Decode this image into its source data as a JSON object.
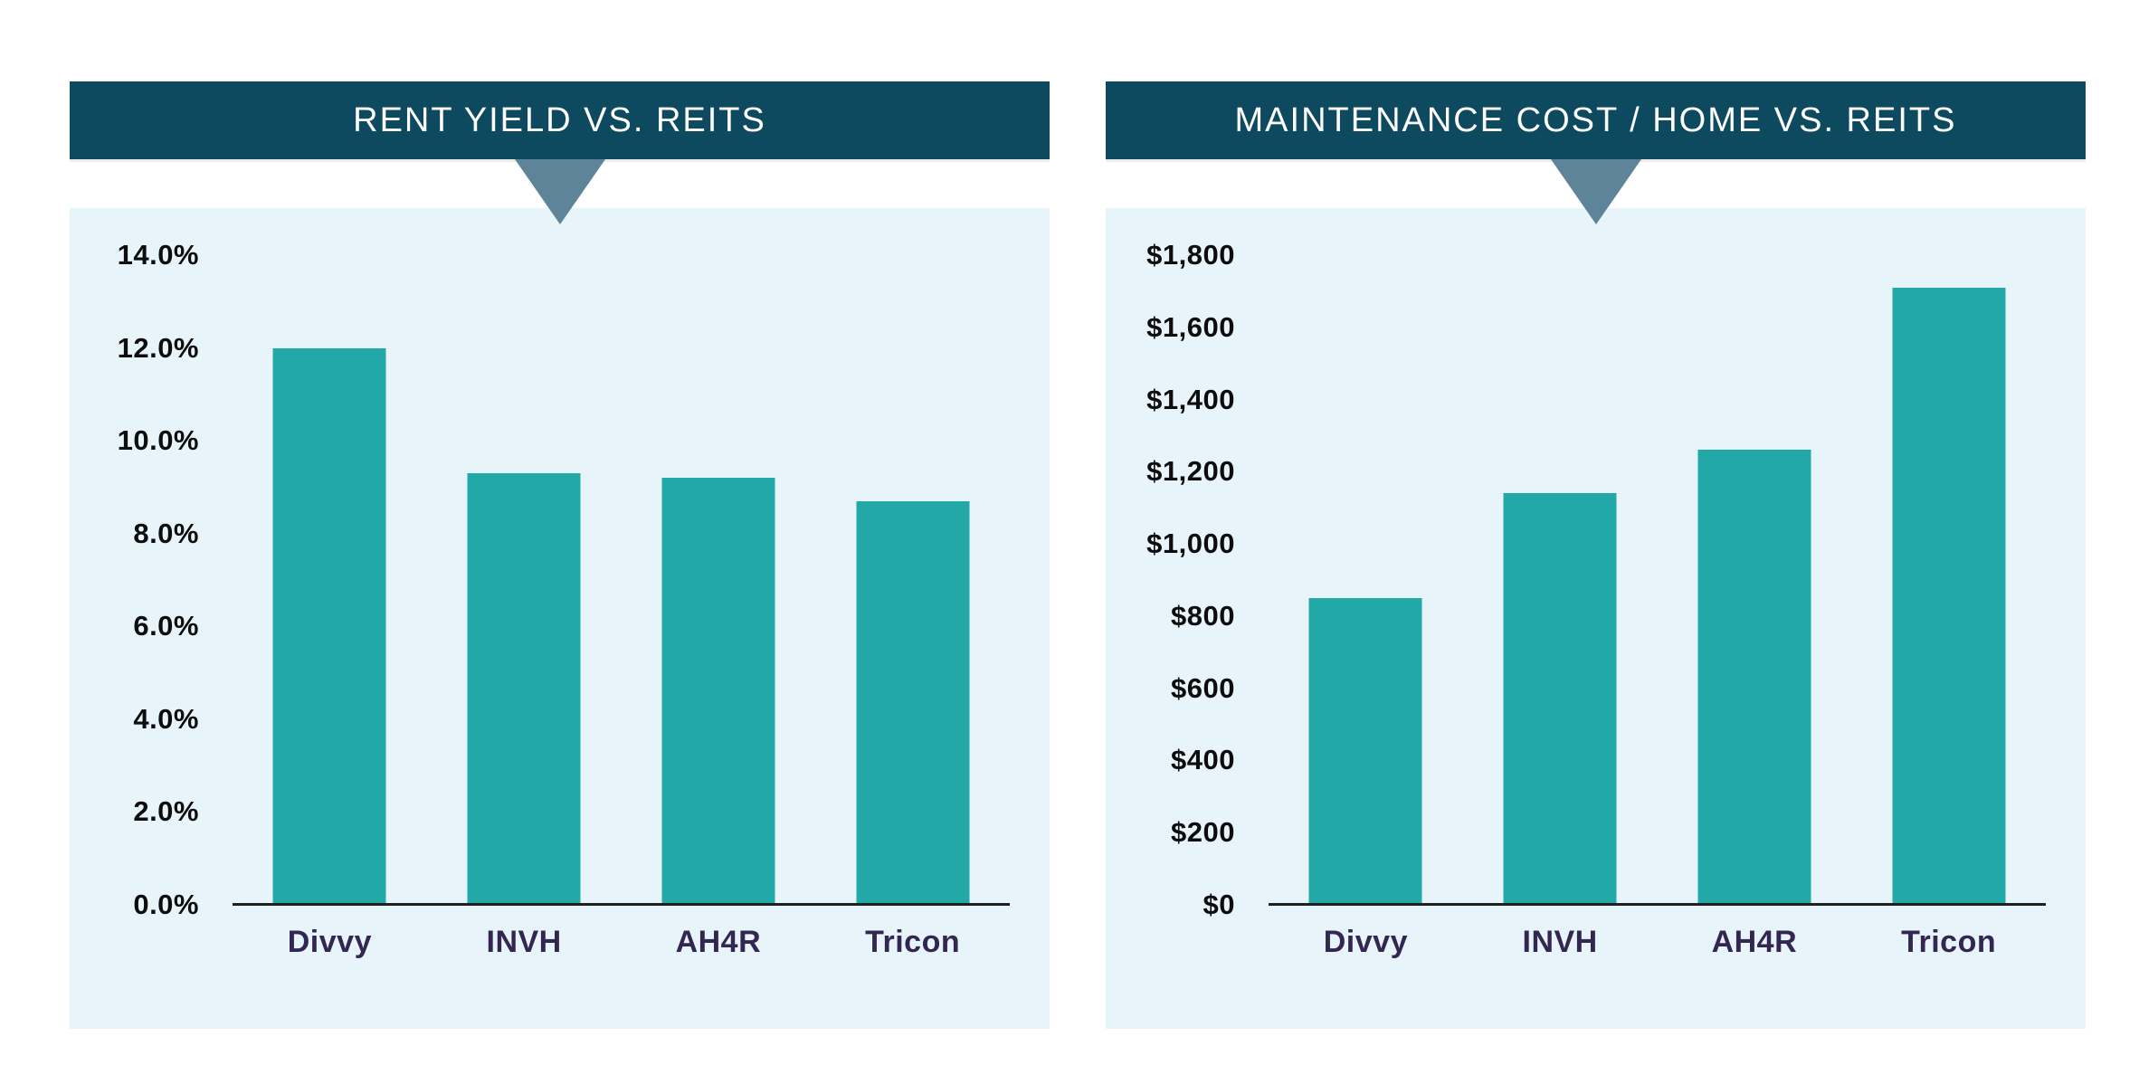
{
  "colors": {
    "header_bg": "#0d4a60",
    "header_text": "#ffffff",
    "pointer": "#5d8498",
    "panel_bg": "#e7f5fb",
    "bar": "#22a9a7",
    "axis": "#1f1f1f",
    "tick_text": "#0d0d0d",
    "category_text": "#332752"
  },
  "chart_data": [
    {
      "type": "bar",
      "title": "RENT YIELD VS. REITS",
      "categories": [
        "Divvy",
        "INVH",
        "AH4R",
        "Tricon"
      ],
      "values": [
        12.0,
        9.3,
        9.2,
        8.7
      ],
      "value_unit": "percent",
      "xlabel": "",
      "ylabel": "",
      "ylim": [
        0,
        14
      ],
      "grid": false,
      "legend": "none",
      "yticks": [
        {
          "value": 14,
          "label": "14.0%"
        },
        {
          "value": 12,
          "label": "12.0%"
        },
        {
          "value": 10,
          "label": "10.0%"
        },
        {
          "value": 8,
          "label": "8.0%"
        },
        {
          "value": 6,
          "label": "6.0%"
        },
        {
          "value": 4,
          "label": "4.0%"
        },
        {
          "value": 2,
          "label": "2.0%"
        },
        {
          "value": 0,
          "label": "0.0%"
        }
      ]
    },
    {
      "type": "bar",
      "title": "MAINTENANCE COST / HOME VS. REITS",
      "categories": [
        "Divvy",
        "INVH",
        "AH4R",
        "Tricon"
      ],
      "values": [
        850,
        1140,
        1260,
        1710
      ],
      "value_unit": "usd",
      "xlabel": "",
      "ylabel": "",
      "ylim": [
        0,
        1800
      ],
      "grid": false,
      "legend": "none",
      "yticks": [
        {
          "value": 1800,
          "label": "$1,800"
        },
        {
          "value": 1600,
          "label": "$1,600"
        },
        {
          "value": 1400,
          "label": "$1,400"
        },
        {
          "value": 1200,
          "label": "$1,200"
        },
        {
          "value": 1000,
          "label": "$1,000"
        },
        {
          "value": 800,
          "label": "$800"
        },
        {
          "value": 600,
          "label": "$600"
        },
        {
          "value": 400,
          "label": "$400"
        },
        {
          "value": 200,
          "label": "$200"
        },
        {
          "value": 0,
          "label": "$0"
        }
      ]
    }
  ]
}
